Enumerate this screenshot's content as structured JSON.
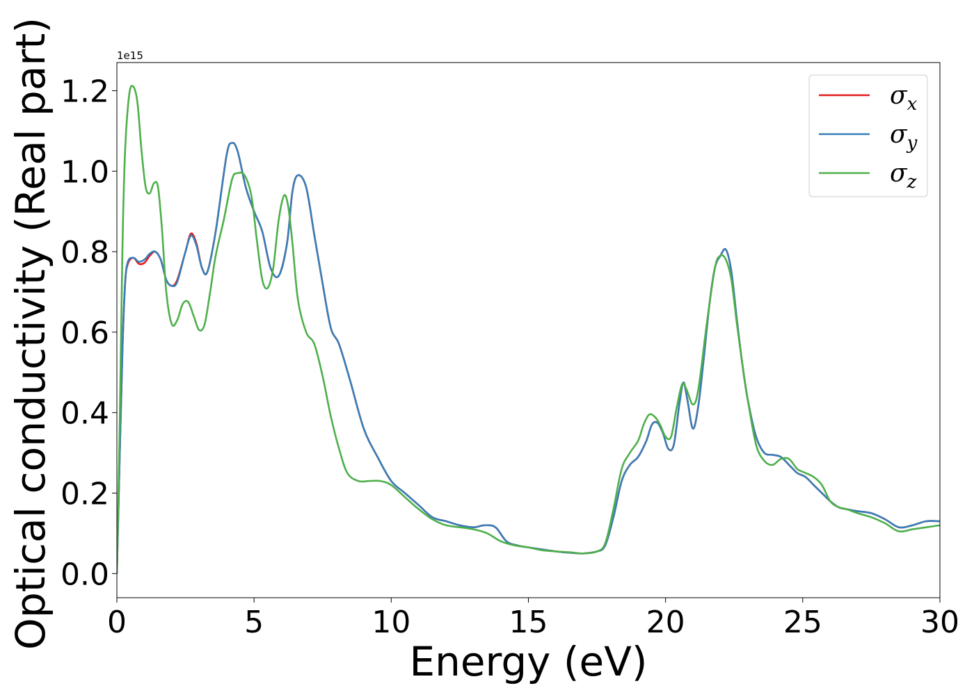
{
  "chart_data": {
    "type": "line",
    "title": "",
    "xlabel": "Energy (eV)",
    "ylabel": "Optical conductivity (Real part)",
    "y_offset_label": "1e15",
    "xlim": [
      0,
      30
    ],
    "ylim": [
      -0.06,
      1.27
    ],
    "x_ticks": [
      0,
      5,
      10,
      15,
      20,
      25,
      30
    ],
    "x_tick_labels": [
      "0",
      "5",
      "10",
      "15",
      "20",
      "25",
      "30"
    ],
    "y_ticks": [
      0.0,
      0.2,
      0.4,
      0.6,
      0.8,
      1.0,
      1.2
    ],
    "y_tick_labels": [
      "0.0",
      "0.2",
      "0.4",
      "0.6",
      "0.8",
      "1.0",
      "1.2"
    ],
    "grid": false,
    "legend_position": "top-right",
    "series": [
      {
        "name": "σx",
        "legend_symbol": "σ",
        "legend_subscript": "x",
        "color": "#e41a1c",
        "x": [
          0,
          0.1,
          0.2,
          0.3,
          0.4,
          0.6,
          0.8,
          1.0,
          1.2,
          1.4,
          1.6,
          1.8,
          2.0,
          2.2,
          2.5,
          2.7,
          2.9,
          3.1,
          3.3,
          3.6,
          4.0,
          4.2,
          4.4,
          4.7,
          5.0,
          5.3,
          5.6,
          5.9,
          6.2,
          6.4,
          6.6,
          6.9,
          7.2,
          7.5,
          7.8,
          8.1,
          8.5,
          9.0,
          9.5,
          10.0,
          10.5,
          11.0,
          11.5,
          12.0,
          12.5,
          13.0,
          13.4,
          13.8,
          14.2,
          14.6,
          15.0,
          15.5,
          16.0,
          16.5,
          17.0,
          17.5,
          17.8,
          18.1,
          18.4,
          18.7,
          19.0,
          19.3,
          19.5,
          19.7,
          19.9,
          20.1,
          20.3,
          20.5,
          20.65,
          20.8,
          21.0,
          21.2,
          21.4,
          21.6,
          21.8,
          22.0,
          22.2,
          22.4,
          22.6,
          22.8,
          23.0,
          23.3,
          23.6,
          23.9,
          24.2,
          24.5,
          24.8,
          25.1,
          25.4,
          25.7,
          26.0,
          26.3,
          26.6,
          27.0,
          27.5,
          28.0,
          28.5,
          29.0,
          29.5,
          30.0
        ],
        "y": [
          0.0,
          0.28,
          0.55,
          0.72,
          0.77,
          0.785,
          0.77,
          0.772,
          0.79,
          0.8,
          0.78,
          0.73,
          0.715,
          0.73,
          0.8,
          0.845,
          0.82,
          0.76,
          0.75,
          0.85,
          1.04,
          1.07,
          1.05,
          0.96,
          0.9,
          0.85,
          0.76,
          0.74,
          0.82,
          0.95,
          0.99,
          0.96,
          0.84,
          0.72,
          0.61,
          0.57,
          0.48,
          0.36,
          0.29,
          0.23,
          0.2,
          0.17,
          0.14,
          0.13,
          0.12,
          0.115,
          0.12,
          0.115,
          0.08,
          0.07,
          0.065,
          0.06,
          0.055,
          0.052,
          0.05,
          0.055,
          0.07,
          0.14,
          0.23,
          0.27,
          0.29,
          0.33,
          0.37,
          0.375,
          0.35,
          0.31,
          0.32,
          0.42,
          0.475,
          0.43,
          0.36,
          0.42,
          0.54,
          0.67,
          0.76,
          0.79,
          0.805,
          0.75,
          0.63,
          0.52,
          0.43,
          0.34,
          0.3,
          0.295,
          0.29,
          0.27,
          0.25,
          0.24,
          0.22,
          0.2,
          0.18,
          0.165,
          0.16,
          0.155,
          0.15,
          0.135,
          0.115,
          0.12,
          0.13,
          0.13
        ]
      },
      {
        "name": "σy",
        "legend_symbol": "σ",
        "legend_subscript": "y",
        "color": "#377eb8",
        "x": [
          0,
          0.1,
          0.2,
          0.3,
          0.4,
          0.6,
          0.8,
          1.0,
          1.2,
          1.4,
          1.6,
          1.8,
          2.0,
          2.2,
          2.5,
          2.7,
          2.9,
          3.1,
          3.3,
          3.6,
          4.0,
          4.2,
          4.4,
          4.7,
          5.0,
          5.3,
          5.6,
          5.9,
          6.2,
          6.4,
          6.6,
          6.9,
          7.2,
          7.5,
          7.8,
          8.1,
          8.5,
          9.0,
          9.5,
          10.0,
          10.5,
          11.0,
          11.5,
          12.0,
          12.5,
          13.0,
          13.4,
          13.8,
          14.2,
          14.6,
          15.0,
          15.5,
          16.0,
          16.5,
          17.0,
          17.5,
          17.8,
          18.1,
          18.4,
          18.7,
          19.0,
          19.3,
          19.5,
          19.7,
          19.9,
          20.1,
          20.3,
          20.5,
          20.65,
          20.8,
          21.0,
          21.2,
          21.4,
          21.6,
          21.8,
          22.0,
          22.2,
          22.4,
          22.6,
          22.8,
          23.0,
          23.3,
          23.6,
          23.9,
          24.2,
          24.5,
          24.8,
          25.1,
          25.4,
          25.7,
          26.0,
          26.3,
          26.6,
          27.0,
          27.5,
          28.0,
          28.5,
          29.0,
          29.5,
          30.0
        ],
        "y": [
          0.0,
          0.28,
          0.55,
          0.72,
          0.775,
          0.785,
          0.775,
          0.78,
          0.795,
          0.8,
          0.78,
          0.73,
          0.715,
          0.725,
          0.8,
          0.84,
          0.815,
          0.76,
          0.75,
          0.85,
          1.04,
          1.07,
          1.05,
          0.96,
          0.9,
          0.85,
          0.76,
          0.74,
          0.82,
          0.95,
          0.99,
          0.96,
          0.84,
          0.72,
          0.61,
          0.57,
          0.48,
          0.36,
          0.29,
          0.23,
          0.2,
          0.17,
          0.14,
          0.13,
          0.12,
          0.115,
          0.12,
          0.115,
          0.08,
          0.07,
          0.065,
          0.06,
          0.055,
          0.052,
          0.05,
          0.055,
          0.07,
          0.14,
          0.23,
          0.27,
          0.29,
          0.33,
          0.37,
          0.375,
          0.35,
          0.31,
          0.32,
          0.42,
          0.475,
          0.43,
          0.36,
          0.42,
          0.54,
          0.67,
          0.76,
          0.79,
          0.805,
          0.75,
          0.63,
          0.52,
          0.43,
          0.34,
          0.3,
          0.295,
          0.29,
          0.27,
          0.25,
          0.24,
          0.22,
          0.2,
          0.18,
          0.165,
          0.16,
          0.155,
          0.15,
          0.135,
          0.115,
          0.12,
          0.13,
          0.13
        ]
      },
      {
        "name": "σz",
        "legend_symbol": "σ",
        "legend_subscript": "z",
        "color": "#4daf4a",
        "x": [
          0,
          0.1,
          0.2,
          0.3,
          0.45,
          0.6,
          0.75,
          0.9,
          1.05,
          1.2,
          1.35,
          1.5,
          1.65,
          1.8,
          2.0,
          2.2,
          2.4,
          2.6,
          2.8,
          3.0,
          3.2,
          3.4,
          3.6,
          3.9,
          4.2,
          4.4,
          4.65,
          4.9,
          5.1,
          5.3,
          5.5,
          5.7,
          5.9,
          6.1,
          6.25,
          6.4,
          6.6,
          6.9,
          7.2,
          7.5,
          7.8,
          8.1,
          8.4,
          8.8,
          9.2,
          9.6,
          10.0,
          10.5,
          11.0,
          11.5,
          12.0,
          12.5,
          13.0,
          13.5,
          14.0,
          14.5,
          15.0,
          15.5,
          16.0,
          16.5,
          17.0,
          17.5,
          17.8,
          18.1,
          18.4,
          18.7,
          19.0,
          19.2,
          19.4,
          19.6,
          19.8,
          20.0,
          20.2,
          20.4,
          20.6,
          20.75,
          21.0,
          21.2,
          21.5,
          21.8,
          22.0,
          22.2,
          22.4,
          22.6,
          22.8,
          23.0,
          23.3,
          23.6,
          23.9,
          24.2,
          24.5,
          24.8,
          25.1,
          25.4,
          25.7,
          26.0,
          26.3,
          26.6,
          27.0,
          27.5,
          28.0,
          28.5,
          29.0,
          29.5,
          30.0
        ],
        "y": [
          0.0,
          0.35,
          0.8,
          1.05,
          1.19,
          1.21,
          1.17,
          1.05,
          0.96,
          0.945,
          0.97,
          0.96,
          0.85,
          0.7,
          0.62,
          0.63,
          0.67,
          0.675,
          0.64,
          0.605,
          0.62,
          0.7,
          0.79,
          0.88,
          0.98,
          0.995,
          0.99,
          0.94,
          0.83,
          0.73,
          0.71,
          0.76,
          0.88,
          0.94,
          0.91,
          0.82,
          0.68,
          0.6,
          0.57,
          0.49,
          0.39,
          0.31,
          0.25,
          0.23,
          0.23,
          0.23,
          0.22,
          0.19,
          0.16,
          0.135,
          0.12,
          0.115,
          0.11,
          0.1,
          0.08,
          0.07,
          0.065,
          0.058,
          0.055,
          0.053,
          0.05,
          0.055,
          0.075,
          0.16,
          0.26,
          0.3,
          0.33,
          0.37,
          0.395,
          0.39,
          0.37,
          0.34,
          0.34,
          0.41,
          0.47,
          0.46,
          0.42,
          0.46,
          0.62,
          0.76,
          0.79,
          0.78,
          0.73,
          0.62,
          0.52,
          0.43,
          0.32,
          0.28,
          0.27,
          0.285,
          0.285,
          0.26,
          0.25,
          0.24,
          0.22,
          0.18,
          0.165,
          0.16,
          0.15,
          0.14,
          0.125,
          0.105,
          0.11,
          0.115,
          0.12
        ]
      }
    ]
  }
}
